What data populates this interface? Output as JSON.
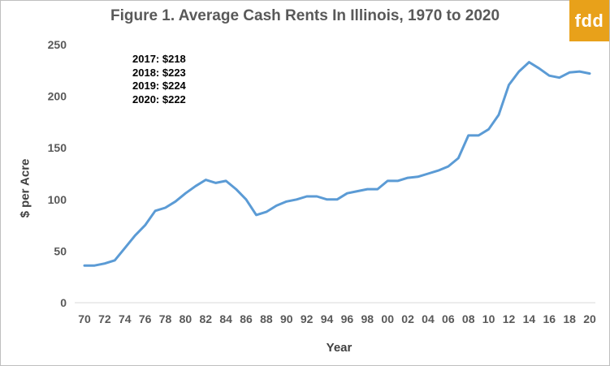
{
  "chart_data": {
    "type": "line",
    "title": "Figure 1. Average Cash Rents In Illinois, 1970 to 2020",
    "xlabel": "Year",
    "ylabel": "$ per Acre",
    "ylim": [
      0,
      250
    ],
    "yticks": [
      "0",
      "50",
      "100",
      "150",
      "200",
      "250"
    ],
    "xtick_labels": [
      "70",
      "72",
      "74",
      "76",
      "78",
      "80",
      "82",
      "84",
      "86",
      "88",
      "90",
      "92",
      "94",
      "96",
      "98",
      "00",
      "02",
      "04",
      "06",
      "08",
      "10",
      "12",
      "14",
      "16",
      "18",
      "20"
    ],
    "grid": false,
    "line_color": "#5b9bd5",
    "x": [
      1970,
      1971,
      1972,
      1973,
      1974,
      1975,
      1976,
      1977,
      1978,
      1979,
      1980,
      1981,
      1982,
      1983,
      1984,
      1985,
      1986,
      1987,
      1988,
      1989,
      1990,
      1991,
      1992,
      1993,
      1994,
      1995,
      1996,
      1997,
      1998,
      1999,
      2000,
      2001,
      2002,
      2003,
      2004,
      2005,
      2006,
      2007,
      2008,
      2009,
      2010,
      2011,
      2012,
      2013,
      2014,
      2015,
      2016,
      2017,
      2018,
      2019,
      2020
    ],
    "series": [
      {
        "values": [
          36,
          36,
          38,
          41,
          53,
          65,
          75,
          89,
          92,
          98,
          106,
          113,
          119,
          116,
          118,
          110,
          100,
          85,
          88,
          94,
          98,
          100,
          103,
          103,
          100,
          100,
          106,
          108,
          110,
          110,
          118,
          118,
          121,
          122,
          125,
          128,
          132,
          140,
          162,
          162,
          168,
          182,
          211,
          224,
          233,
          227,
          220,
          218,
          223,
          224,
          222
        ]
      }
    ],
    "annotations": [
      "2017: $218",
      "2018: $223",
      "2019: $224",
      "2020: $222"
    ]
  },
  "logo_text": "fdd",
  "colors": {
    "logo_bg": "#e8a11a",
    "line": "#5b9bd5",
    "axis": "#d9d9d9"
  }
}
